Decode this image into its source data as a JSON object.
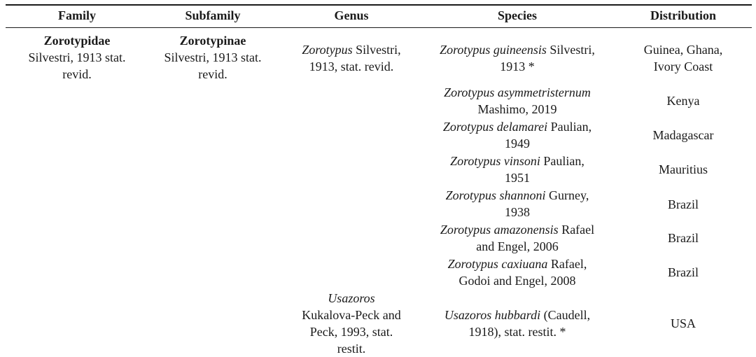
{
  "headers": {
    "family": "Family",
    "subfamily": "Subfamily",
    "genus": "Genus",
    "species": "Species",
    "distribution": "Distribution"
  },
  "family": {
    "name": "Zorotypidae",
    "authority_line1": "Silvestri, 1913 stat.",
    "authority_line2": "revid."
  },
  "subfamily": {
    "name": "Zorotypinae",
    "authority_line1": "Silvestri, 1913 stat.",
    "authority_line2": "revid."
  },
  "genera": [
    {
      "name": "Zorotypus",
      "authority_line1": " Silvestri,",
      "authority_line2": "1913, stat. revid."
    },
    {
      "name": "Usazoros",
      "authority_line1": "Kukalova-Peck and",
      "authority_line2": "Peck, 1993, stat.",
      "authority_line3": "restit."
    }
  ],
  "rows": [
    {
      "genus_part": "Zorotypus guineensis",
      "author_part": " Silvestri,",
      "line2": "1913 *",
      "distribution_line1": "Guinea, Ghana,",
      "distribution_line2": "Ivory Coast"
    },
    {
      "genus_part": "Zorotypus asymmetristernum",
      "author_part": "",
      "line2": "Mashimo, 2019",
      "distribution_line1": "Kenya",
      "distribution_line2": ""
    },
    {
      "genus_part": "Zorotypus delamarei",
      "author_part": " Paulian,",
      "line2": "1949",
      "distribution_line1": "Madagascar",
      "distribution_line2": ""
    },
    {
      "genus_part": "Zorotypus vinsoni",
      "author_part": " Paulian,",
      "line2": "1951",
      "distribution_line1": "Mauritius",
      "distribution_line2": ""
    },
    {
      "genus_part": "Zorotypus shannoni",
      "author_part": " Gurney,",
      "line2": "1938",
      "distribution_line1": "Brazil",
      "distribution_line2": ""
    },
    {
      "genus_part": "Zorotypus amazonensis",
      "author_part": " Rafael",
      "line2": "and Engel, 2006",
      "distribution_line1": "Brazil",
      "distribution_line2": ""
    },
    {
      "genus_part": "Zorotypus caxiuana",
      "author_part": " Rafael,",
      "line2": "Godoi and Engel, 2008",
      "distribution_line1": "Brazil",
      "distribution_line2": ""
    },
    {
      "genus_part": "Usazoros hubbardi",
      "author_part": " (Caudell,",
      "line2": "1918), stat. restit. *",
      "distribution_line1": "USA",
      "distribution_line2": ""
    }
  ]
}
